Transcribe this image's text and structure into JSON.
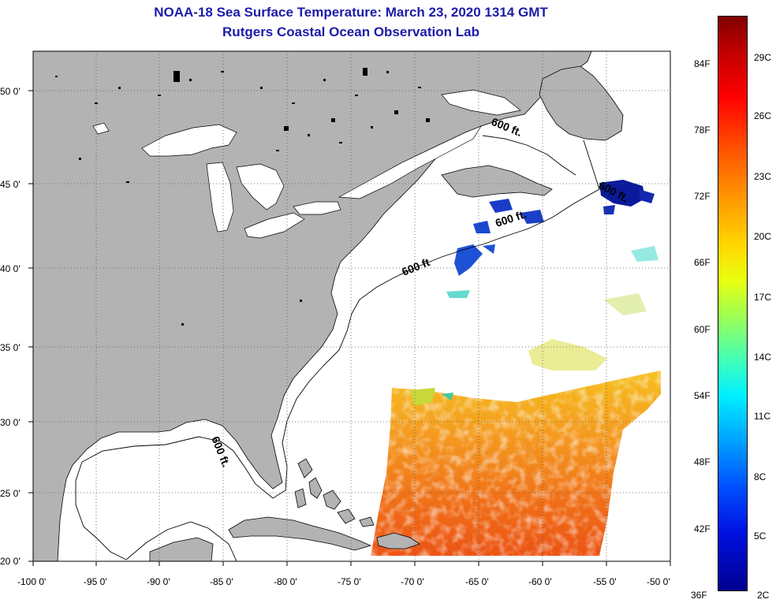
{
  "header": {
    "title_line1": "NOAA-18 Sea Surface Temperature:  March 23, 2020 1314 GMT",
    "title_line2": "Rutgers Coastal Ocean Observation Lab"
  },
  "map": {
    "lon_labels": [
      "-100 0'",
      "-95 0'",
      "-90 0'",
      "-85 0'",
      "-80 0'",
      "-75 0'",
      "-70 0'",
      "-65 0'",
      "-60 0'",
      "-55 0'",
      "-50 0'"
    ],
    "lat_labels": [
      "50 0'",
      "45 0'",
      "40 0'",
      "35 0'",
      "30 0'",
      "25 0'",
      "20 0'"
    ],
    "depth_contour_label": "600 ft.",
    "depth_contour_labels": [
      "600 ft.",
      "600 ft.",
      "600 ft.",
      "600 ft",
      "600 ft."
    ]
  },
  "colorbar": {
    "fahrenheit_labels": [
      "84F",
      "78F",
      "72F",
      "66F",
      "60F",
      "54F",
      "48F",
      "42F",
      "36F"
    ],
    "celsius_labels": [
      "29C",
      "26C",
      "23C",
      "20C",
      "17C",
      "14C",
      "11C",
      "8C",
      "5C",
      "2C"
    ]
  },
  "colors": {
    "land": "#b3b3b3",
    "title": "#1c1ca8",
    "warm": "#f07818",
    "cold": "#0a1a9a"
  }
}
